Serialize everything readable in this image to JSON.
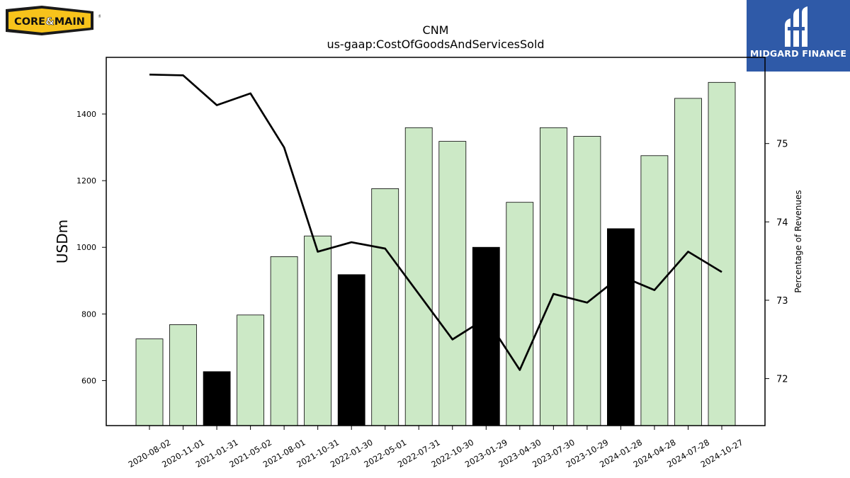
{
  "logos": {
    "left_brand": "CORE&MAIN",
    "left_brand_parts": [
      "CORE",
      "&",
      "MAIN"
    ],
    "right_brand": "MIDGARD FINANCE"
  },
  "colors": {
    "bar_normal": "#cce9c6",
    "bar_highlight": "#000000",
    "line": "#000000",
    "brand_yellow": "#f7c31b",
    "brand_blue": "#2f5aa8"
  },
  "chart_data": {
    "type": "bar",
    "title": "CNM",
    "subtitle": "us-gaap:CostOfGoodsAndServicesSold",
    "ylabel": "USDm",
    "y2label": "Percentage of Revenues",
    "ylim": [
      465,
      1570
    ],
    "y2lim": [
      71.4,
      76.1
    ],
    "yticks": [
      600,
      800,
      1000,
      1200,
      1400
    ],
    "y2ticks": [
      72,
      73,
      74,
      75
    ],
    "grid": false,
    "categories": [
      "2020-08-02",
      "2020-11-01",
      "2021-01-31",
      "2021-05-02",
      "2021-08-01",
      "2021-10-31",
      "2022-01-30",
      "2022-05-01",
      "2022-07-31",
      "2022-10-30",
      "2023-01-29",
      "2023-04-30",
      "2023-07-30",
      "2023-10-29",
      "2024-01-28",
      "2024-04-28",
      "2024-07-28",
      "2024-10-27"
    ],
    "series": [
      {
        "kind": "bar",
        "axis": "left",
        "values": [
          725,
          768,
          627,
          797,
          972,
          1034,
          918,
          1176,
          1359,
          1318,
          1000,
          1135,
          1359,
          1333,
          1056,
          1275,
          1447,
          1495
        ],
        "highlighted": [
          false,
          false,
          true,
          false,
          false,
          false,
          true,
          false,
          false,
          false,
          true,
          false,
          false,
          false,
          true,
          false,
          false,
          false
        ]
      },
      {
        "kind": "line",
        "axis": "right",
        "values": [
          75.88,
          75.87,
          75.49,
          75.64,
          74.95,
          73.62,
          73.74,
          73.66,
          73.08,
          72.5,
          72.77,
          72.11,
          73.08,
          72.97,
          73.31,
          73.13,
          73.62,
          73.36
        ]
      }
    ]
  }
}
